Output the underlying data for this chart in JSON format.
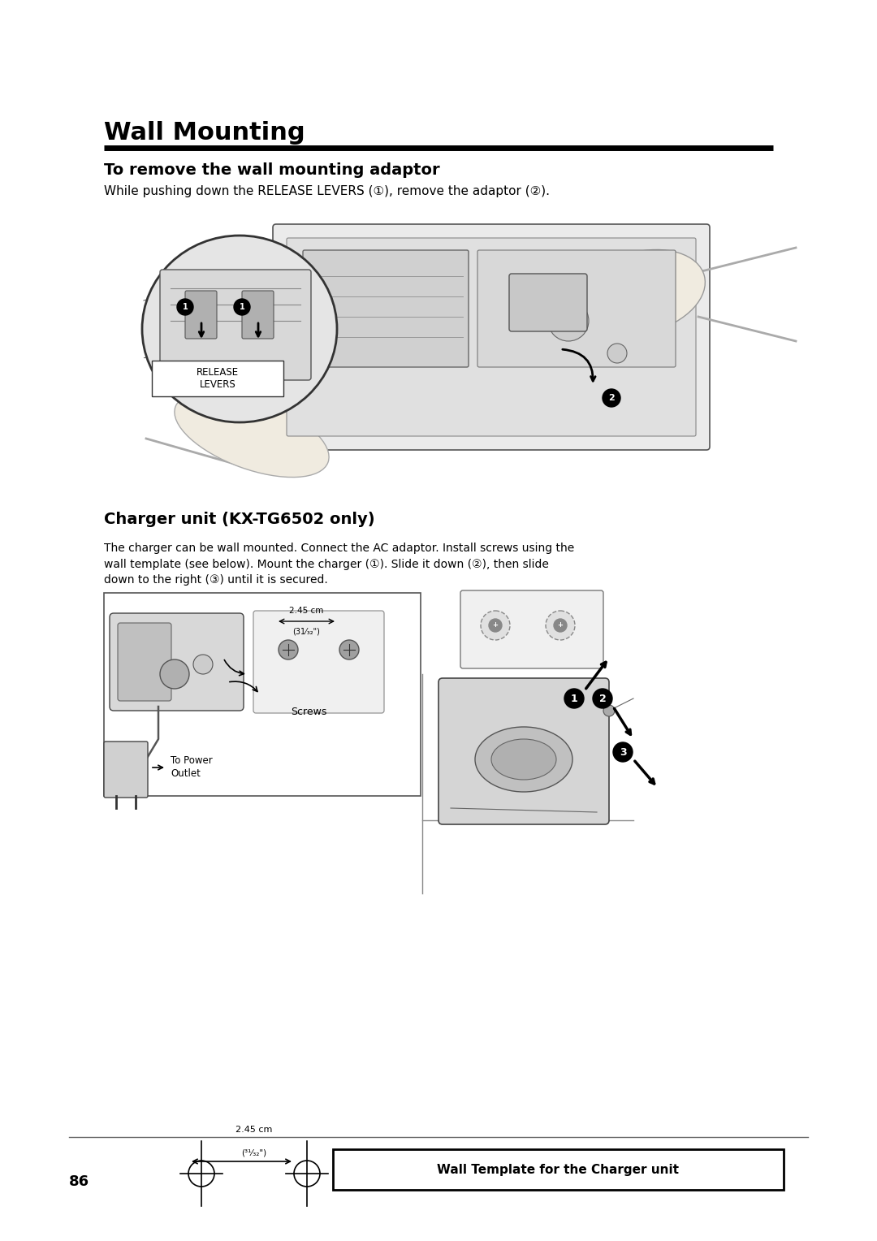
{
  "bg_color": "#ffffff",
  "page_width": 10.8,
  "page_height": 15.28,
  "title": "Wall Mounting",
  "title_fontsize": 22,
  "section1_title": "To remove the wall mounting adaptor",
  "section1_title_fontsize": 14,
  "section1_body": "While pushing down the RELEASE LEVERS (①), remove the adaptor (②).",
  "section1_body_fontsize": 11,
  "section2_title": "Charger unit (KX-TG6502 only)",
  "section2_title_fontsize": 14,
  "section2_body1": "The charger can be wall mounted. Connect the AC adaptor. Install screws using the",
  "section2_body2": "wall template (see below). Mount the charger (①). Slide it down (②), then slide",
  "section2_body3": "down to the right (③) until it is secured.",
  "section2_body_fontsize": 10,
  "page_num": "86",
  "wall_template_label": "Wall Template for the Charger unit",
  "release_levers_label": "RELEASE\nLEVERS",
  "screws_label": "Screws",
  "power_outlet_label": "To Power\nOutlet",
  "dim_top": "2.45 cm",
  "dim_bot": "(31⁄₃₂\")",
  "dim_bot2": "(³¹⁄₃₂\")"
}
